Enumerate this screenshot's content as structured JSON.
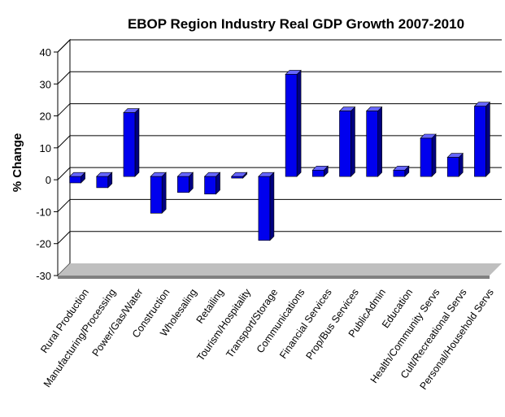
{
  "chart_data": {
    "type": "bar",
    "title": "EBOP Region Industry Real GDP Growth 2007-2010",
    "xlabel": "",
    "ylabel": "% Change",
    "ylim": [
      -30,
      40
    ],
    "yticks": [
      -30,
      -20,
      -10,
      0,
      10,
      20,
      30,
      40
    ],
    "grid": true,
    "legend": "none",
    "categories": [
      "Rural Production",
      "Manufacturing/Processing",
      "Power/Gas/Water",
      "Construction",
      "Wholesaling",
      "Retailing",
      "Tourism/Hospitality",
      "Transport/Storage",
      "Communications",
      "Financial Services",
      "Prop/Bus Services",
      "PublicAdmin",
      "Education",
      "Health/Community Servs",
      "Cult/Recreational Servs",
      "Personal/Household Servs"
    ],
    "values": [
      -2,
      -3.5,
      20,
      -11.5,
      -5,
      -5.5,
      -0.5,
      -20,
      32,
      2,
      20.5,
      20.5,
      2,
      12,
      6,
      22
    ],
    "colors": {
      "bar_front": "#0000EE",
      "bar_side": "#000080",
      "bar_top": "#6666FF",
      "wall": "#FFFFFF",
      "floor": "#BFBFBF",
      "floor_shadow": "#808080",
      "gridline": "#000000"
    }
  }
}
